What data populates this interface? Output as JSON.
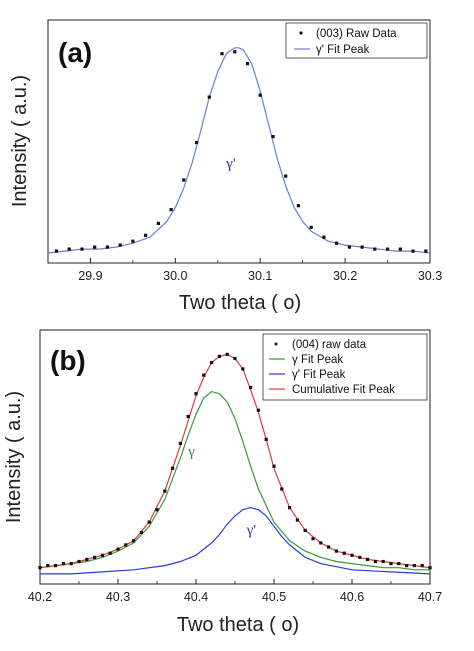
{
  "chart_data": [
    {
      "type": "scatter",
      "panel_label": "(a)",
      "xlabel": "Two theta ( o)",
      "ylabel": "Intensity ( a.u.)",
      "xlim": [
        29.85,
        30.3
      ],
      "ylim": [
        0,
        1.12
      ],
      "xticks": [
        "29.9",
        "30.0",
        "30.1",
        "30.2",
        "30.3"
      ],
      "xtick_values": [
        29.9,
        30.0,
        30.1,
        30.2,
        30.3
      ],
      "legend_position": "top-right",
      "annotation": {
        "text": "γ'",
        "x": 30.06,
        "y": 0.44,
        "color": "#2233aa"
      },
      "series": [
        {
          "name": "(003) Raw Data",
          "kind": "points",
          "color": "#111111",
          "x": [
            29.86,
            29.875,
            29.89,
            29.905,
            29.92,
            29.935,
            29.95,
            29.965,
            29.98,
            29.995,
            30.01,
            30.025,
            30.04,
            30.055,
            30.07,
            30.085,
            30.1,
            30.115,
            30.13,
            30.145,
            30.16,
            30.175,
            30.19,
            30.205,
            30.22,
            30.235,
            30.25,
            30.265,
            30.28,
            30.295
          ],
          "y": [
            0.02,
            0.03,
            0.03,
            0.04,
            0.04,
            0.05,
            0.07,
            0.1,
            0.16,
            0.23,
            0.38,
            0.57,
            0.8,
            1.02,
            1.03,
            0.97,
            0.81,
            0.6,
            0.4,
            0.25,
            0.14,
            0.09,
            0.06,
            0.04,
            0.04,
            0.03,
            0.03,
            0.03,
            0.02,
            0.02
          ]
        },
        {
          "name": "γ' Fit Peak",
          "kind": "line",
          "color": "#6d7fd0",
          "x": [
            29.85,
            29.87,
            29.89,
            29.91,
            29.93,
            29.95,
            29.97,
            29.99,
            30.0,
            30.01,
            30.02,
            30.03,
            30.04,
            30.05,
            30.06,
            30.07,
            30.075,
            30.08,
            30.09,
            30.1,
            30.11,
            30.12,
            30.13,
            30.14,
            30.15,
            30.16,
            30.18,
            30.2,
            30.22,
            30.24,
            30.26,
            30.28,
            30.3
          ],
          "y": [
            0.01,
            0.02,
            0.03,
            0.03,
            0.04,
            0.06,
            0.09,
            0.17,
            0.24,
            0.34,
            0.47,
            0.63,
            0.8,
            0.93,
            1.02,
            1.05,
            1.05,
            1.04,
            0.97,
            0.83,
            0.66,
            0.49,
            0.35,
            0.24,
            0.17,
            0.12,
            0.07,
            0.05,
            0.04,
            0.03,
            0.02,
            0.02,
            0.01
          ]
        }
      ]
    },
    {
      "type": "scatter",
      "panel_label": "(b)",
      "xlabel": "Two theta ( o)",
      "ylabel": "Intensity ( a.u.)",
      "xlim": [
        40.2,
        40.7
      ],
      "ylim": [
        0,
        1.12
      ],
      "xticks": [
        "40.2",
        "40.3",
        "40.4",
        "40.5",
        "40.6",
        "40.7"
      ],
      "xtick_values": [
        40.2,
        40.3,
        40.4,
        40.5,
        40.6,
        40.7
      ],
      "legend_position": "top-right",
      "annotations": [
        {
          "text": "γ",
          "x": 40.39,
          "y": 0.58,
          "color": "#2e8b2e"
        },
        {
          "text": "γ'",
          "x": 40.465,
          "y": 0.2,
          "color": "#2233aa"
        }
      ],
      "series": [
        {
          "name": "(004) raw data",
          "kind": "points",
          "color": "#111111",
          "x": [
            40.2,
            40.21,
            40.22,
            40.23,
            40.24,
            40.25,
            40.26,
            40.27,
            40.28,
            40.29,
            40.3,
            40.31,
            40.32,
            40.33,
            40.34,
            40.35,
            40.36,
            40.37,
            40.38,
            40.39,
            40.4,
            40.41,
            40.42,
            40.43,
            40.44,
            40.45,
            40.46,
            40.47,
            40.48,
            40.49,
            40.5,
            40.51,
            40.52,
            40.53,
            40.54,
            40.55,
            40.56,
            40.57,
            40.58,
            40.59,
            40.6,
            40.61,
            40.62,
            40.63,
            40.64,
            40.65,
            40.66,
            40.67,
            40.68,
            40.69,
            40.7
          ],
          "y": [
            0.04,
            0.05,
            0.05,
            0.06,
            0.06,
            0.07,
            0.08,
            0.09,
            0.1,
            0.11,
            0.13,
            0.15,
            0.17,
            0.21,
            0.26,
            0.32,
            0.41,
            0.52,
            0.64,
            0.77,
            0.88,
            0.97,
            1.03,
            1.06,
            1.07,
            1.05,
            1.0,
            0.91,
            0.8,
            0.66,
            0.53,
            0.42,
            0.33,
            0.27,
            0.22,
            0.18,
            0.16,
            0.14,
            0.12,
            0.11,
            0.1,
            0.09,
            0.08,
            0.07,
            0.07,
            0.06,
            0.06,
            0.05,
            0.05,
            0.05,
            0.04
          ]
        },
        {
          "name": "γ Fit Peak",
          "kind": "line",
          "color": "#3a9a3a",
          "x": [
            40.2,
            40.22,
            40.24,
            40.26,
            40.28,
            40.3,
            40.32,
            40.34,
            40.36,
            40.38,
            40.39,
            40.4,
            40.41,
            40.42,
            40.43,
            40.44,
            40.45,
            40.46,
            40.47,
            40.48,
            40.5,
            40.52,
            40.54,
            40.56,
            40.58,
            40.6,
            40.62,
            40.64,
            40.66,
            40.68,
            40.7
          ],
          "y": [
            0.04,
            0.05,
            0.06,
            0.07,
            0.09,
            0.12,
            0.16,
            0.24,
            0.37,
            0.57,
            0.68,
            0.78,
            0.86,
            0.89,
            0.88,
            0.84,
            0.76,
            0.65,
            0.53,
            0.42,
            0.26,
            0.17,
            0.12,
            0.09,
            0.07,
            0.06,
            0.05,
            0.04,
            0.04,
            0.03,
            0.03
          ]
        },
        {
          "name": "γ' Fit Peak",
          "kind": "line",
          "color": "#2b3bd6",
          "x": [
            40.2,
            40.24,
            40.28,
            40.32,
            40.36,
            40.38,
            40.4,
            40.42,
            40.43,
            40.44,
            40.45,
            40.46,
            40.47,
            40.48,
            40.49,
            40.5,
            40.51,
            40.52,
            40.54,
            40.56,
            40.6,
            40.65,
            40.7
          ],
          "y": [
            0.01,
            0.01,
            0.02,
            0.03,
            0.05,
            0.07,
            0.1,
            0.16,
            0.2,
            0.25,
            0.29,
            0.32,
            0.33,
            0.32,
            0.29,
            0.24,
            0.19,
            0.15,
            0.09,
            0.06,
            0.03,
            0.02,
            0.01
          ]
        },
        {
          "name": "Cumulative Fit Peak",
          "kind": "line",
          "color": "#e03a3a",
          "x": [
            40.2,
            40.22,
            40.24,
            40.26,
            40.28,
            40.3,
            40.32,
            40.34,
            40.36,
            40.38,
            40.4,
            40.41,
            40.42,
            40.43,
            40.44,
            40.45,
            40.46,
            40.47,
            40.48,
            40.49,
            40.5,
            40.52,
            40.54,
            40.56,
            40.58,
            40.6,
            40.62,
            40.64,
            40.66,
            40.68,
            40.7
          ],
          "y": [
            0.04,
            0.05,
            0.06,
            0.08,
            0.1,
            0.13,
            0.17,
            0.26,
            0.41,
            0.63,
            0.87,
            0.96,
            1.03,
            1.06,
            1.07,
            1.05,
            1.0,
            0.9,
            0.79,
            0.66,
            0.52,
            0.33,
            0.22,
            0.16,
            0.12,
            0.1,
            0.08,
            0.07,
            0.06,
            0.05,
            0.04
          ]
        }
      ]
    }
  ]
}
